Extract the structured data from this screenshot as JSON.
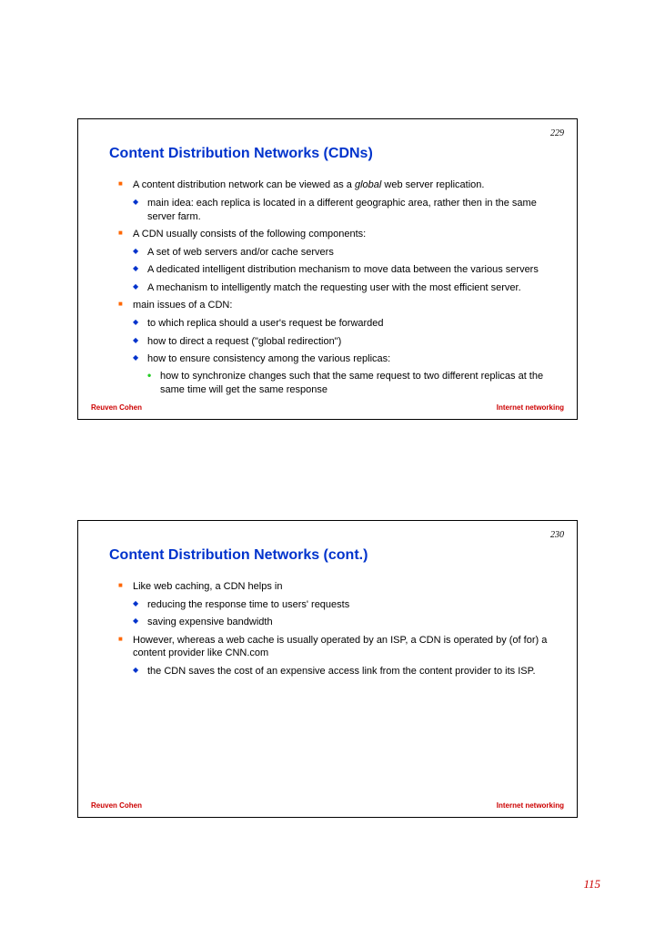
{
  "page_number": "115",
  "footer_left": "Reuven Cohen",
  "footer_right": "Internet networking",
  "slides": [
    {
      "number": "229",
      "title": "Content Distribution Networks (CDNs)",
      "b1": "A content distribution network can be viewed as a ",
      "b1_em": "global",
      "b1_after": " web server replication.",
      "b1_1": "main idea: each replica is located in a different geographic area, rather then in the same server farm.",
      "b2": "A CDN usually consists of the following components:",
      "b2_1": "A set of web servers and/or  cache servers",
      "b2_2": "A dedicated intelligent distribution mechanism to move data between the various servers",
      "b2_3": "A mechanism to intelligently match the requesting user with the most efficient server.",
      "b3": "main issues of a CDN:",
      "b3_1": "to which replica should a user's request be forwarded",
      "b3_2": "how to direct a request (\"global redirection\")",
      "b3_3": "how to ensure consistency among the various replicas:",
      "b3_3_1": "how to synchronize changes such that the same request to two different replicas at the same time will get the same response"
    },
    {
      "number": "230",
      "title": "Content Distribution Networks (cont.)",
      "b1": "Like web caching, a CDN helps in",
      "b1_1": "reducing the response time to users' requests",
      "b1_2": "saving expensive bandwidth",
      "b2": "However, whereas a web cache is usually operated by an ISP, a CDN is operated by (of for) a content provider like CNN.com",
      "b2_1": "the CDN saves the cost of an expensive access link from the content provider to its ISP."
    }
  ]
}
